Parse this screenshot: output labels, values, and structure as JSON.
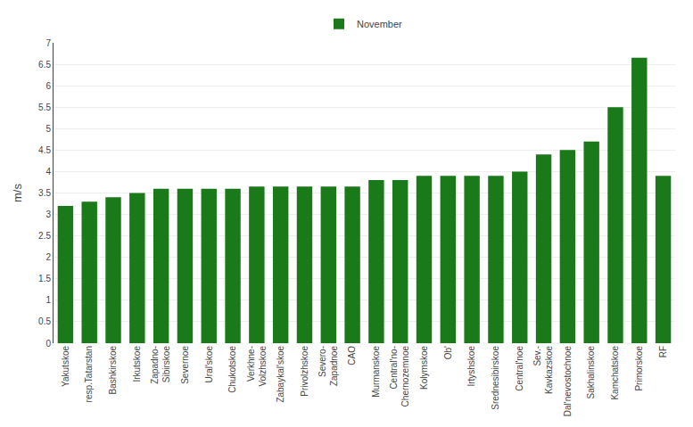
{
  "chart_data": {
    "type": "bar",
    "categories": [
      "Yakutskoe",
      "resp.Tatarstan",
      "Bashkirskoe",
      "Irkutskoe",
      "Zapadno-\nSibirskoe",
      "Severnoe",
      "Ural'skoe",
      "Chukotskoe",
      "Verkhne-\nVolzhskoe",
      "Zabaykal'skoe",
      "Privolzhskoe",
      "Severo-\nZapadnoe",
      "CAO",
      "Murmanskoe",
      "Central'no-\nChernozemnoe",
      "Kolymskoe",
      "Ob'",
      "Irtyshskoe",
      "Srednesibirskoe",
      "Central'noe",
      "Sev.-\nKavkazskoe",
      "Dal'nevostochnoe",
      "Sakhalinskoe",
      "Kamchatskoe",
      "Primorskoe",
      "RF"
    ],
    "series": [
      {
        "name": "November",
        "color": "#1a7a1a",
        "values": [
          3.2,
          3.3,
          3.4,
          3.5,
          3.6,
          3.6,
          3.6,
          3.6,
          3.65,
          3.65,
          3.65,
          3.65,
          3.65,
          3.8,
          3.8,
          3.9,
          3.9,
          3.9,
          3.9,
          4.0,
          4.4,
          4.5,
          4.7,
          5.5,
          6.65,
          3.9
        ]
      }
    ],
    "ylabel": "m/s",
    "ylim": [
      0,
      7
    ],
    "yticks": [
      0,
      0.5,
      1,
      1.5,
      2,
      2.5,
      3,
      3.5,
      4,
      4.5,
      5,
      5.5,
      6,
      6.5,
      7
    ],
    "grid": true,
    "legend": "upper center"
  }
}
